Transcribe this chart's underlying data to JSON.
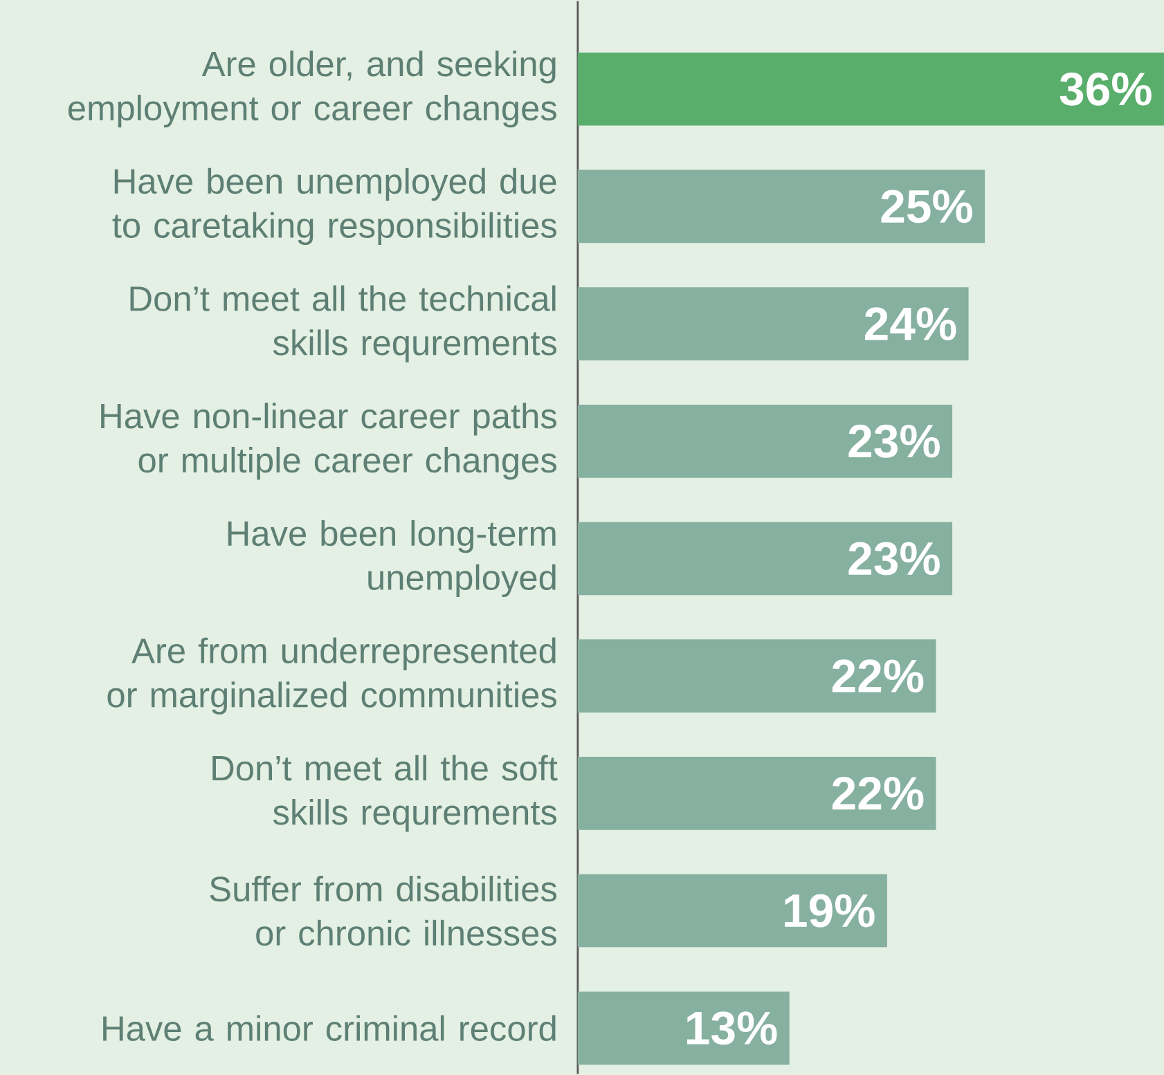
{
  "chart_data": {
    "type": "bar",
    "orientation": "horizontal",
    "categories": [
      "Are older, and seeking employment or career changes",
      "Have been unemployed due to caretaking responsibilities",
      "Don’t meet all the technical skills requrements",
      "Have non-linear career paths or multiple career changes",
      "Have been long-term unemployed",
      "Are from underrepresented or marginalized communities",
      "Don’t meet all the soft skills requrements",
      "Suffer from disabilities or chronic illnesses",
      "Have a minor criminal record"
    ],
    "values": [
      36,
      25,
      24,
      23,
      23,
      22,
      22,
      19,
      13
    ],
    "value_labels": [
      "36%",
      "25%",
      "24%",
      "23%",
      "23%",
      "22%",
      "22%",
      "19%",
      "13%"
    ],
    "colors": [
      "#5aae6c",
      "#86b0a0",
      "#86b0a0",
      "#86b0a0",
      "#86b0a0",
      "#86b0a0",
      "#86b0a0",
      "#86b0a0",
      "#86b0a0"
    ]
  }
}
